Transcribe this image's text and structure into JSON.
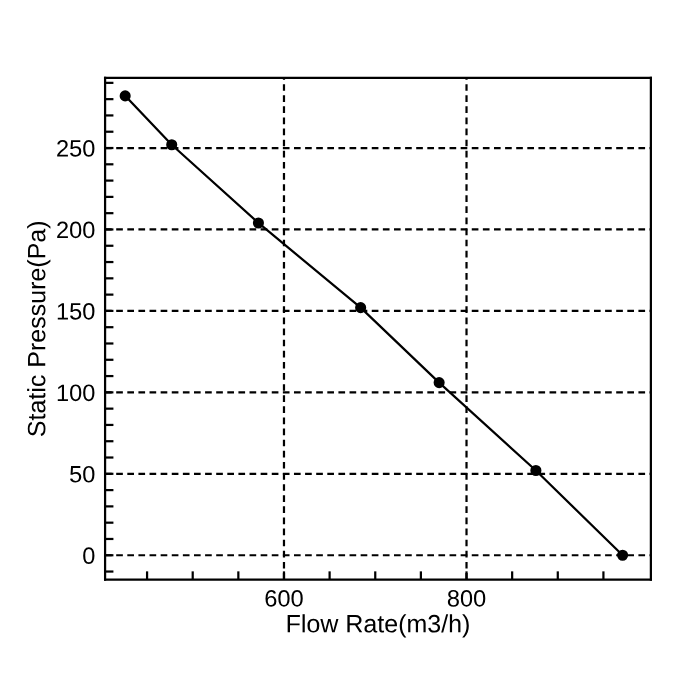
{
  "chart_data": {
    "type": "line",
    "xlabel": "Flow Rate(m3/h)",
    "ylabel": "Static Pressure(Pa)",
    "x": [
      426,
      477,
      572,
      684,
      770,
      876,
      971
    ],
    "series": [
      {
        "color": "#000000",
        "values": [
          282,
          252,
          204,
          152,
          106,
          52,
          0
        ]
      }
    ],
    "marker": "circle",
    "line_style": "solid",
    "grid": true,
    "xlim": [
      404,
      1002
    ],
    "ylim": [
      -15,
      293
    ],
    "xticks": [
      {
        "value": 450,
        "label": null
      },
      {
        "value": 500,
        "label": null
      },
      {
        "value": 550,
        "label": null
      },
      600,
      {
        "value": 650,
        "label": null
      },
      {
        "value": 700,
        "label": null
      },
      {
        "value": 750,
        "label": null
      },
      800,
      {
        "value": 850,
        "label": null
      },
      {
        "value": 900,
        "label": null
      },
      {
        "value": 950,
        "label": null
      }
    ],
    "yticks": [
      {
        "value": -10,
        "label": null
      },
      0,
      {
        "value": 10,
        "label": null
      },
      {
        "value": 20,
        "label": null
      },
      {
        "value": 30,
        "label": null
      },
      {
        "value": 40,
        "label": null
      },
      50,
      {
        "value": 60,
        "label": null
      },
      {
        "value": 70,
        "label": null
      },
      {
        "value": 80,
        "label": null
      },
      {
        "value": 90,
        "label": null
      },
      100,
      {
        "value": 110,
        "label": null
      },
      {
        "value": 120,
        "label": null
      },
      {
        "value": 130,
        "label": null
      },
      {
        "value": 140,
        "label": null
      },
      150,
      {
        "value": 160,
        "label": null
      },
      {
        "value": 170,
        "label": null
      },
      {
        "value": 180,
        "label": null
      },
      {
        "value": 190,
        "label": null
      },
      200,
      {
        "value": 210,
        "label": null
      },
      {
        "value": 220,
        "label": null
      },
      {
        "value": 230,
        "label": null
      },
      {
        "value": 240,
        "label": null
      },
      250,
      {
        "value": 260,
        "label": null
      },
      {
        "value": 270,
        "label": null
      },
      {
        "value": 280,
        "label": null
      },
      {
        "value": 290,
        "label": null
      }
    ]
  }
}
